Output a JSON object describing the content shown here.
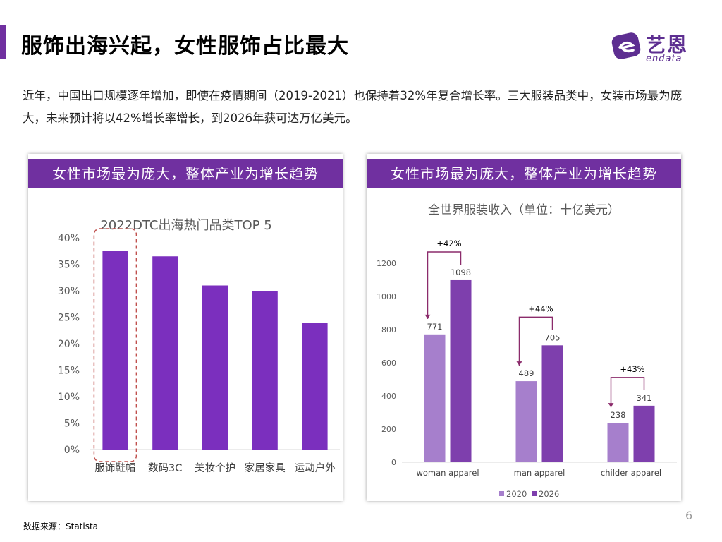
{
  "header": {
    "title": "服饰出海兴起，女性服饰占比最大",
    "logo_cn": "艺恩",
    "logo_en": "endata"
  },
  "intro": "近年，中国出口规模逐年增加，即使在疫情期间（2019-2021）也保持着32%年复合增长率。三大服装品类中，女装市场最为庞大，未来预计将以42%增长率增长，到2026年获可达万亿美元。",
  "panels": {
    "left_header": "女性市场最为庞大，整体产业为增长趋势",
    "right_header": "女性市场最为庞大，整体产业为增长趋势"
  },
  "footer": {
    "source": "数据来源：Statista",
    "page_number": "6"
  },
  "colors": {
    "accent": "#7030a0",
    "bar_left": "#7b2fbe",
    "series_2020": "#a67fcc",
    "series_2026": "#7e3fad",
    "highlight_border": "#c0504d",
    "arrow": "#8b2b6b"
  },
  "chart_data": [
    {
      "type": "bar",
      "title": "2022DTC出海热门品类TOP 5",
      "categories": [
        "服饰鞋帽",
        "数码3C",
        "美妆个护",
        "家居家具",
        "运动户外"
      ],
      "values": [
        37.5,
        36.5,
        31,
        30,
        24
      ],
      "ylim": [
        0,
        40
      ],
      "yticks": [
        0,
        5,
        10,
        15,
        20,
        25,
        30,
        35,
        40
      ],
      "ytick_labels": [
        "0%",
        "5%",
        "10%",
        "15%",
        "20%",
        "25%",
        "30%",
        "35%",
        "40%"
      ],
      "highlighted_category": "服饰鞋帽",
      "grid": false,
      "legend": "none"
    },
    {
      "type": "bar",
      "title": "全世界服装收入（单位：十亿美元）",
      "categories": [
        "woman apparel",
        "man apparel",
        "childer apparel"
      ],
      "series": [
        {
          "name": "2020",
          "values": [
            771,
            489,
            238
          ]
        },
        {
          "name": "2026",
          "values": [
            1098,
            705,
            341
          ]
        }
      ],
      "growth_labels": [
        "+42%",
        "+44%",
        "+43%"
      ],
      "ylim": [
        0,
        1200
      ],
      "yticks": [
        0,
        200,
        400,
        600,
        800,
        1000,
        1200
      ],
      "grid": false,
      "legend": "bottom"
    }
  ]
}
